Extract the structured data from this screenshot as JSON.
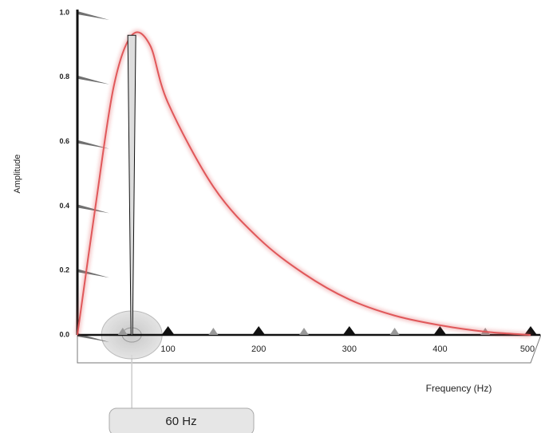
{
  "chart_data": {
    "type": "line",
    "x_label": "Frequency (Hz)",
    "y_label": "Amplitude",
    "x": [
      0,
      20,
      40,
      60,
      80,
      100,
      150,
      200,
      250,
      300,
      350,
      400,
      450,
      500
    ],
    "series": [
      {
        "name": "Amplitude",
        "color": "#e0585a",
        "values": [
          0,
          0.4,
          0.77,
          0.93,
          0.9,
          0.72,
          0.46,
          0.3,
          0.19,
          0.11,
          0.06,
          0.03,
          0.01,
          0
        ]
      }
    ],
    "xlim": [
      0,
      500
    ],
    "xticks": [
      100,
      200,
      300,
      400,
      500
    ],
    "ylim": [
      0,
      1
    ],
    "yticks": [
      {
        "value": 0,
        "label": "0.0"
      },
      0.2,
      0.4,
      0.6,
      0.8,
      {
        "value": 1,
        "label": "1.0"
      }
    ],
    "annotation": {
      "text": "60 Hz",
      "x": 60
    }
  }
}
